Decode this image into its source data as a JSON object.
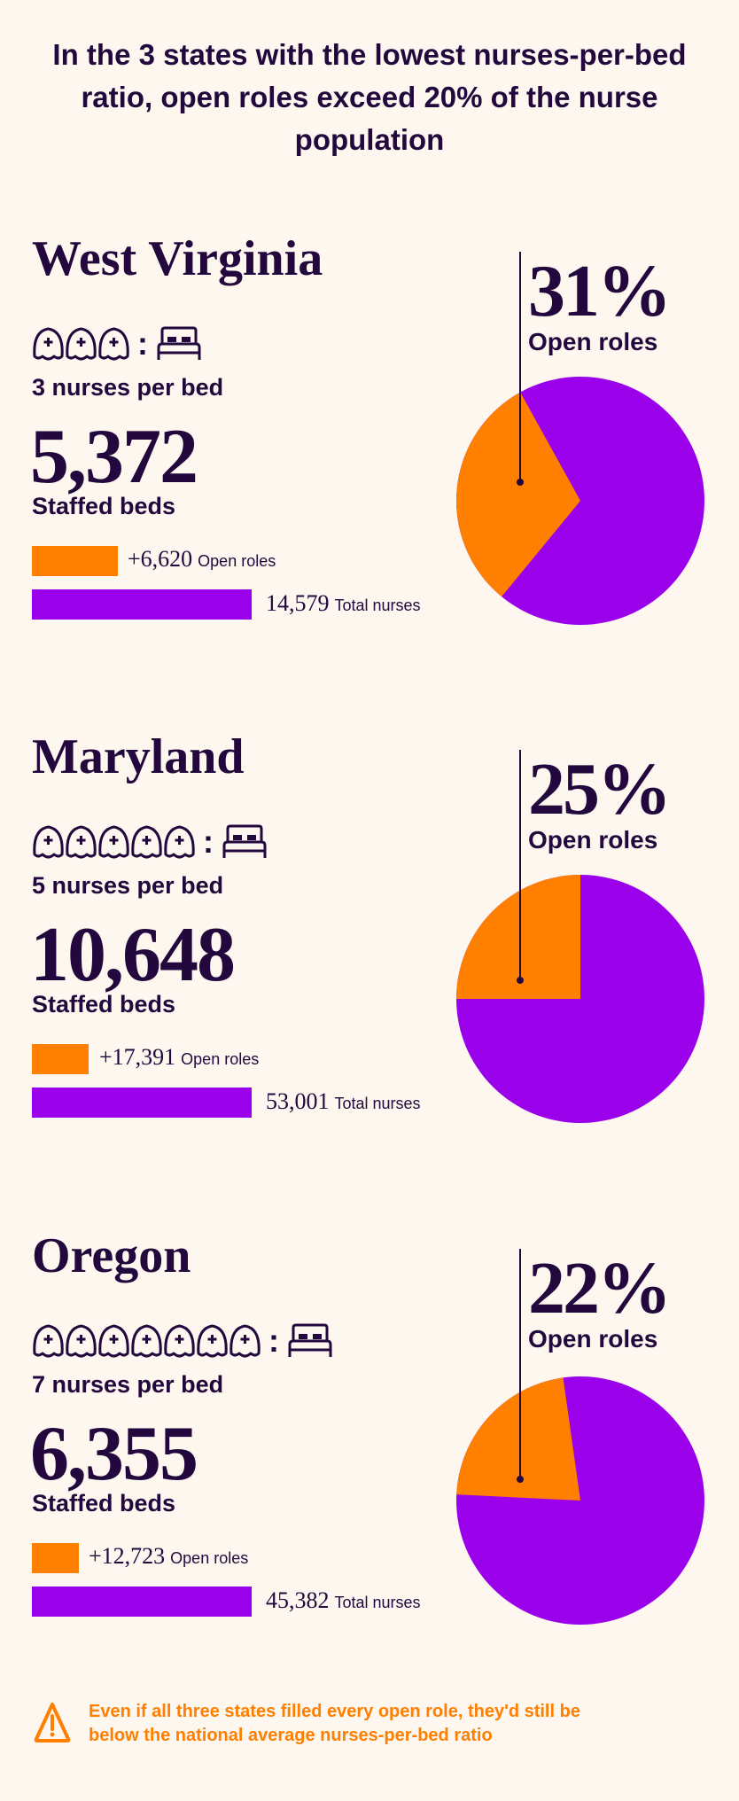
{
  "title": "In the 3 states with the lowest nurses-per-bed ratio, open roles exceed 20% of the nurse population",
  "colors": {
    "background": "#fdf7f0",
    "text": "#22083c",
    "open_roles": "#ff7f00",
    "total_nurses": "#9b00ea"
  },
  "icons": {
    "nurse": "nurse-cap-icon",
    "bed": "bed-icon",
    "warning": "warning-triangle-icon"
  },
  "chart_data": [
    {
      "type": "pie",
      "state": "West Virginia",
      "nurses_per_bed": 3,
      "ratio_label": "3 nurses per bed",
      "staffed_beds": "5,372",
      "staffed_beds_label": "Staffed beds",
      "open_roles": "+6,620",
      "open_roles_label": "Open roles",
      "total_nurses": "14,579",
      "total_nurses_label": "Total nurses",
      "open_pct_label": "31%",
      "open_pct": 31,
      "pct_label": "Open roles"
    },
    {
      "type": "pie",
      "state": "Maryland",
      "nurses_per_bed": 5,
      "ratio_label": "5 nurses per bed",
      "staffed_beds": "10,648",
      "staffed_beds_label": "Staffed beds",
      "open_roles": "+17,391",
      "open_roles_label": "Open roles",
      "total_nurses": "53,001",
      "total_nurses_label": "Total nurses",
      "open_pct_label": "25%",
      "open_pct": 25,
      "pct_label": "Open roles"
    },
    {
      "type": "pie",
      "state": "Oregon",
      "nurses_per_bed": 7,
      "ratio_label": "7 nurses per bed",
      "staffed_beds": "6,355",
      "staffed_beds_label": "Staffed beds",
      "open_roles": "+12,723",
      "open_roles_label": "Open roles",
      "total_nurses": "45,382",
      "total_nurses_label": "Total nurses",
      "open_pct_label": "22%",
      "open_pct": 22,
      "pct_label": "Open roles"
    }
  ],
  "footer": {
    "text": "Even if all three states filled every open role, they'd still be below the national average nurses-per-bed ratio"
  }
}
